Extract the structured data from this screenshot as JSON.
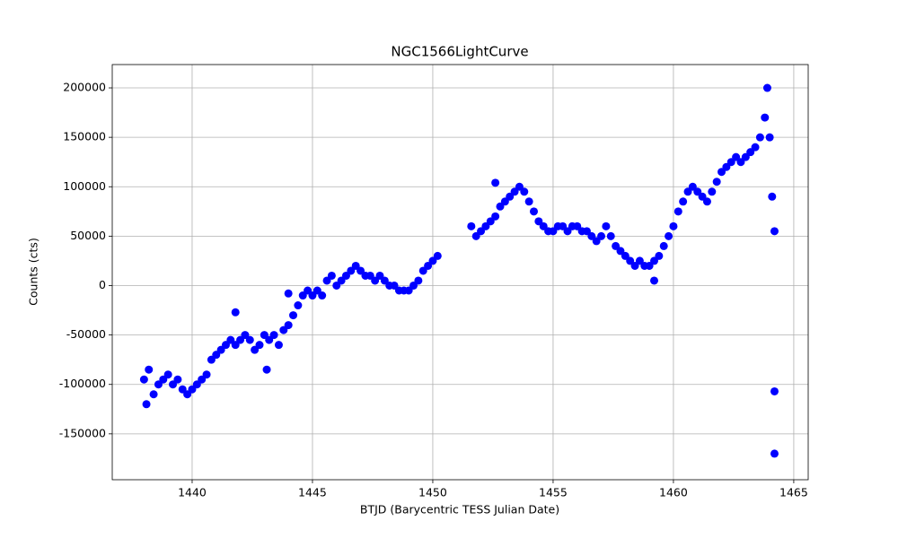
{
  "chart_data": {
    "type": "scatter",
    "title": "NGC1566LightCurve",
    "x_label": "BTJD (Barycentric TESS Julian Date)",
    "y_label": "Counts (cts)",
    "color": "#0000ff",
    "grid": true,
    "xlim": [
      1436.68,
      1465.6
    ],
    "ylim": [
      -196400,
      223600
    ],
    "xticks": [
      1440,
      1445,
      1450,
      1455,
      1460,
      1465
    ],
    "yticks": [
      -150000,
      -100000,
      -50000,
      0,
      50000,
      100000,
      150000,
      200000
    ],
    "x": [
      1438.0,
      1438.2,
      1438.4,
      1438.6,
      1438.8,
      1439.0,
      1439.2,
      1439.4,
      1439.6,
      1439.8,
      1440.0,
      1440.2,
      1440.4,
      1440.6,
      1440.8,
      1441.0,
      1441.2,
      1441.4,
      1441.6,
      1441.8,
      1442.0,
      1442.2,
      1442.4,
      1442.6,
      1442.8,
      1443.0,
      1443.2,
      1443.4,
      1443.6,
      1443.8,
      1444.0,
      1444.2,
      1444.4,
      1444.6,
      1444.8,
      1445.0,
      1445.2,
      1445.4,
      1445.6,
      1445.8,
      1446.0,
      1446.2,
      1446.4,
      1446.6,
      1446.8,
      1447.0,
      1447.2,
      1447.4,
      1447.6,
      1447.8,
      1448.0,
      1448.2,
      1448.4,
      1448.6,
      1448.8,
      1449.0,
      1449.2,
      1449.4,
      1449.6,
      1449.8,
      1450.0,
      1450.2,
      1451.6,
      1451.8,
      1452.0,
      1452.2,
      1452.4,
      1452.6,
      1452.8,
      1453.0,
      1453.2,
      1453.4,
      1453.6,
      1453.8,
      1454.0,
      1454.2,
      1454.4,
      1454.6,
      1454.8,
      1455.0,
      1455.2,
      1455.4,
      1455.6,
      1455.8,
      1456.0,
      1456.2,
      1456.4,
      1456.6,
      1456.8,
      1457.0,
      1457.2,
      1457.4,
      1457.6,
      1457.8,
      1458.0,
      1458.2,
      1458.4,
      1458.6,
      1458.8,
      1459.0,
      1459.2,
      1459.4,
      1459.6,
      1459.8,
      1460.0,
      1460.2,
      1460.4,
      1460.6,
      1460.8,
      1461.0,
      1461.2,
      1461.4,
      1461.6,
      1461.8,
      1462.0,
      1462.2,
      1462.4,
      1462.6,
      1462.8,
      1463.0,
      1463.2,
      1463.4,
      1463.6,
      1463.8,
      1463.9,
      1464.0,
      1464.1,
      1464.2,
      1464.2,
      1464.2,
      1441.8,
      1452.6,
      1459.2,
      1438.1,
      1443.1,
      1444.0
    ],
    "values": [
      -95000,
      -85000,
      -110000,
      -100000,
      -95000,
      -90000,
      -100000,
      -95000,
      -105000,
      -110000,
      -105000,
      -100000,
      -95000,
      -90000,
      -75000,
      -70000,
      -65000,
      -60000,
      -55000,
      -60000,
      -55000,
      -50000,
      -55000,
      -65000,
      -60000,
      -50000,
      -55000,
      -50000,
      -60000,
      -45000,
      -40000,
      -30000,
      -20000,
      -10000,
      -5000,
      -10000,
      -5000,
      -10000,
      5000,
      10000,
      0,
      5000,
      10000,
      15000,
      20000,
      15000,
      10000,
      10000,
      5000,
      10000,
      5000,
      0,
      0,
      -5000,
      -5000,
      -5000,
      0,
      5000,
      15000,
      20000,
      25000,
      30000,
      60000,
      50000,
      55000,
      60000,
      65000,
      70000,
      80000,
      85000,
      90000,
      95000,
      100000,
      95000,
      85000,
      75000,
      65000,
      60000,
      55000,
      55000,
      60000,
      60000,
      55000,
      60000,
      60000,
      55000,
      55000,
      50000,
      45000,
      50000,
      60000,
      50000,
      40000,
      35000,
      30000,
      25000,
      20000,
      25000,
      20000,
      20000,
      25000,
      30000,
      40000,
      50000,
      60000,
      75000,
      85000,
      95000,
      100000,
      95000,
      90000,
      85000,
      95000,
      105000,
      115000,
      120000,
      125000,
      130000,
      125000,
      130000,
      135000,
      140000,
      150000,
      170000,
      200000,
      150000,
      90000,
      55000,
      -107000,
      -170000,
      -27000,
      104000,
      5000,
      -120000,
      -85000,
      -8000
    ]
  }
}
